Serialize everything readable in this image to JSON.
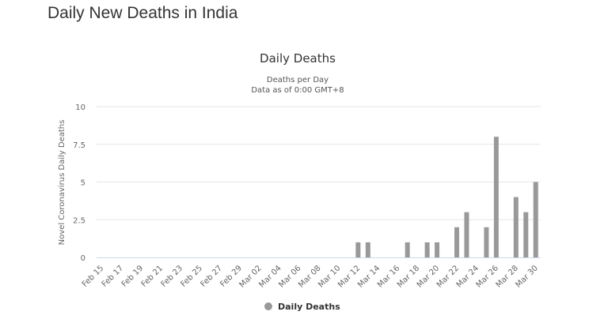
{
  "page_title": "Daily New Deaths in India",
  "chart_data": {
    "type": "bar",
    "title": "Daily Deaths",
    "subtitle_lines": [
      "Deaths per Day",
      "Data as of 0:00 GMT+8"
    ],
    "ylabel": "Novel Coronavirus Daily Deaths",
    "xlabel": "",
    "ylim": [
      0,
      10
    ],
    "yticks": [
      "0",
      "2.5",
      "5",
      "7.5",
      "10"
    ],
    "ytick_values": [
      0,
      2.5,
      5,
      7.5,
      10
    ],
    "grid": true,
    "legend": {
      "position": "bottom",
      "entries": [
        "Daily Deaths"
      ]
    },
    "color": "#999999",
    "categories": [
      "Feb 15",
      "Feb 16",
      "Feb 17",
      "Feb 18",
      "Feb 19",
      "Feb 20",
      "Feb 21",
      "Feb 22",
      "Feb 23",
      "Feb 24",
      "Feb 25",
      "Feb 26",
      "Feb 27",
      "Feb 28",
      "Feb 29",
      "Mar 01",
      "Mar 02",
      "Mar 03",
      "Mar 04",
      "Mar 05",
      "Mar 06",
      "Mar 07",
      "Mar 08",
      "Mar 09",
      "Mar 10",
      "Mar 11",
      "Mar 12",
      "Mar 13",
      "Mar 14",
      "Mar 15",
      "Mar 16",
      "Mar 17",
      "Mar 18",
      "Mar 19",
      "Mar 20",
      "Mar 21",
      "Mar 22",
      "Mar 23",
      "Mar 24",
      "Mar 25",
      "Mar 26",
      "Mar 27",
      "Mar 28",
      "Mar 29",
      "Mar 30"
    ],
    "series": [
      {
        "name": "Daily Deaths",
        "values": [
          0,
          0,
          0,
          0,
          0,
          0,
          0,
          0,
          0,
          0,
          0,
          0,
          0,
          0,
          0,
          0,
          0,
          0,
          0,
          0,
          0,
          0,
          0,
          0,
          0,
          0,
          1,
          1,
          0,
          0,
          0,
          1,
          0,
          1,
          1,
          0,
          2,
          3,
          0,
          2,
          8,
          0,
          4,
          3,
          5
        ]
      }
    ]
  }
}
